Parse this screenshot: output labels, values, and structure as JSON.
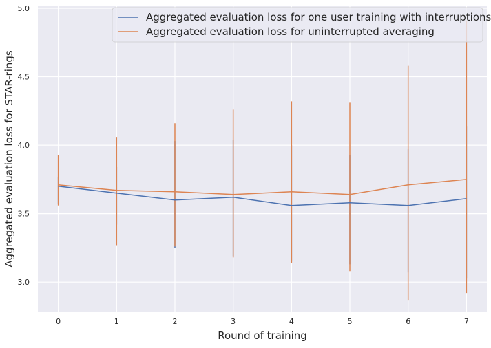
{
  "chart_data": {
    "type": "line",
    "title": "",
    "xlabel": "Round of training",
    "ylabel": "Aggregated evaluation loss for STAR-rings",
    "x": [
      0,
      1,
      2,
      3,
      4,
      5,
      6,
      7
    ],
    "xlim": [
      -0.35,
      7.35
    ],
    "ylim": [
      2.78,
      5.02
    ],
    "xticks": [
      0,
      1,
      2,
      3,
      4,
      5,
      6,
      7
    ],
    "yticks": [
      3.0,
      3.5,
      4.0,
      4.5,
      5.0
    ],
    "ytick_labels": [
      "3.0",
      "3.5",
      "4.0",
      "4.5",
      "5.0"
    ],
    "grid": true,
    "legend_position": "top-right",
    "colors": {
      "background": "#eaeaf2",
      "grid": "#ffffff"
    },
    "series": [
      {
        "name": "Aggregated evaluation loss for one user training with interruptions",
        "color": "#4c72b0",
        "values": [
          3.7,
          3.65,
          3.6,
          3.62,
          3.56,
          3.58,
          3.56,
          3.61
        ],
        "err_low": [
          3.57,
          3.42,
          3.25,
          3.19,
          3.15,
          3.13,
          3.07,
          3.03
        ],
        "err_high": [
          3.77,
          3.84,
          4.03,
          4.04,
          4.0,
          3.93,
          3.97,
          4.14
        ]
      },
      {
        "name": "Aggregated evaluation loss for uninterrupted averaging",
        "color": "#dd8452",
        "values": [
          3.71,
          3.67,
          3.66,
          3.64,
          3.66,
          3.64,
          3.71,
          3.75
        ],
        "err_low": [
          3.56,
          3.27,
          3.26,
          3.18,
          3.14,
          3.08,
          2.87,
          2.92
        ],
        "err_high": [
          3.93,
          4.06,
          4.16,
          4.26,
          4.32,
          4.31,
          4.58,
          4.91
        ]
      }
    ]
  }
}
